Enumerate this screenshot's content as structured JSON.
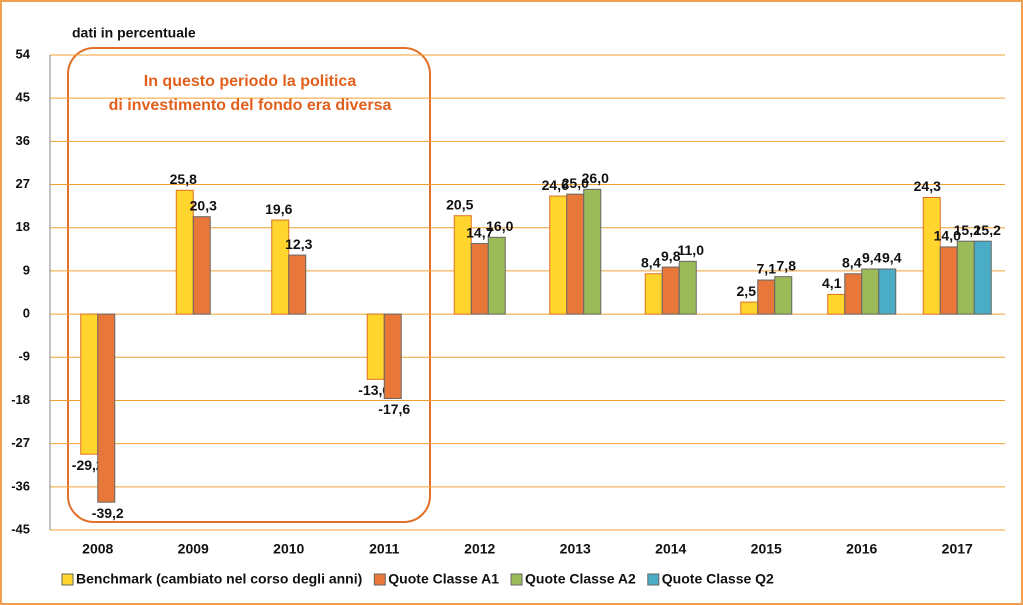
{
  "chart_data": {
    "type": "bar",
    "y_label": "dati in percentuale",
    "annotation": [
      "In questo periodo la politica",
      "di investimento del fondo era diversa"
    ],
    "categories": [
      "2008",
      "2009",
      "2010",
      "2011",
      "2012",
      "2013",
      "2014",
      "2015",
      "2016",
      "2017"
    ],
    "series": [
      {
        "name": "Benchmark (cambiato nel corso degli anni)",
        "color": "#ffd52e",
        "values": [
          -29.2,
          25.8,
          19.6,
          -13.6,
          20.5,
          24.6,
          8.4,
          2.5,
          4.1,
          24.3
        ],
        "value_labels": [
          "-29,2",
          "25,8",
          "19,6",
          "-13,6",
          "20,5",
          "24,6",
          "8,4",
          "2,5",
          "4,1",
          "24,3"
        ]
      },
      {
        "name": "Quote Classe A1",
        "color": "#e8783a",
        "values": [
          -39.2,
          20.3,
          12.3,
          -17.6,
          14.7,
          25.0,
          9.8,
          7.1,
          8.4,
          14.0
        ],
        "value_labels": [
          "-39,2",
          "20,3",
          "12,3",
          "-17,6",
          "14,7",
          "25,0",
          "9,8",
          "7,1",
          "8,4",
          "14,0"
        ]
      },
      {
        "name": "Quote Classe A2",
        "color": "#9bbb59",
        "values": [
          null,
          null,
          null,
          null,
          16.0,
          26.0,
          11.0,
          7.8,
          9.4,
          15.2
        ],
        "value_labels": [
          null,
          null,
          null,
          null,
          "16,0",
          "26,0",
          "11,0",
          "7,8",
          "9,4",
          "15,2"
        ]
      },
      {
        "name": "Quote Classe Q2",
        "color": "#4bacc6",
        "values": [
          null,
          null,
          null,
          null,
          null,
          null,
          null,
          null,
          9.4,
          15.2
        ],
        "value_labels": [
          null,
          null,
          null,
          null,
          null,
          null,
          null,
          null,
          "9,4",
          "15,2"
        ]
      }
    ],
    "ylim": [
      -45,
      54
    ],
    "yticks": [
      -45,
      -36,
      -27,
      -18,
      -9,
      0,
      9,
      18,
      27,
      36,
      45,
      54
    ],
    "grid": true,
    "legend": "bottom"
  }
}
